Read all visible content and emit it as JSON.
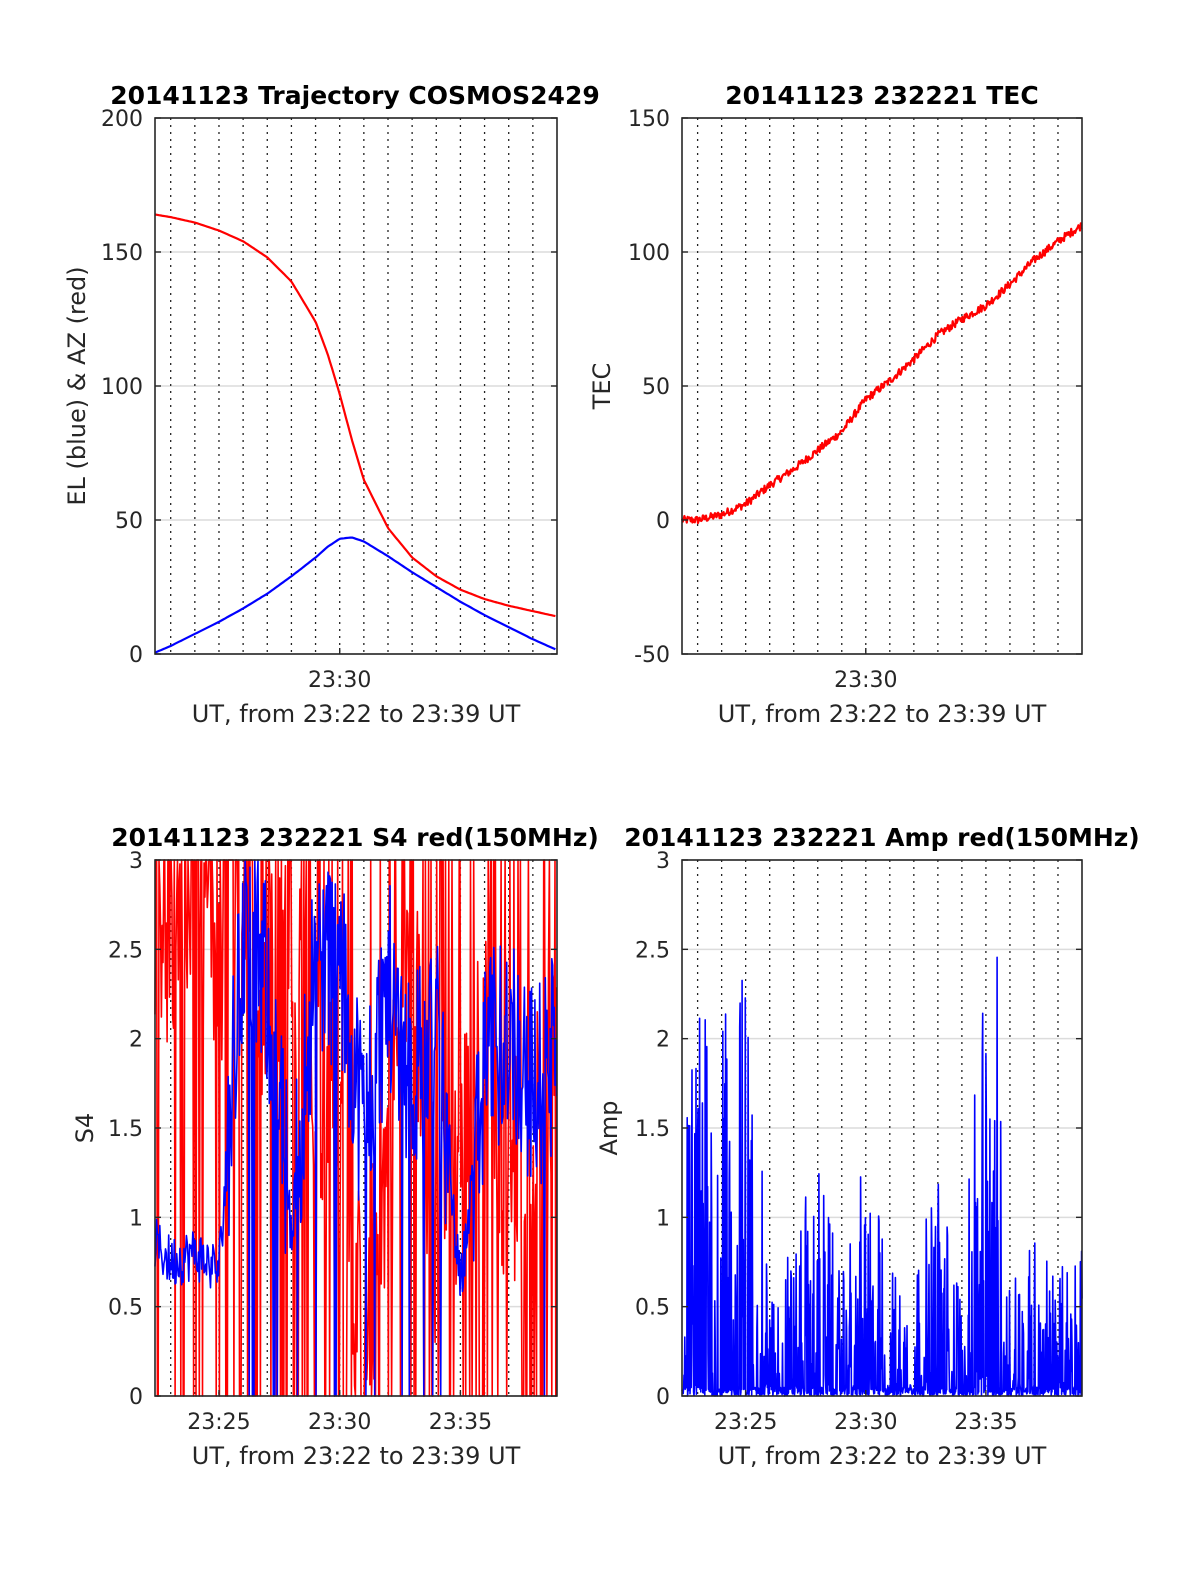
{
  "figure": {
    "colors": {
      "el": "#0000ff",
      "az": "#ff0000",
      "tec": "#ff0000",
      "s4_red": "#ff0000",
      "s4_blue": "#0000ff",
      "amp": "#0000ff"
    }
  },
  "chart_data": [
    {
      "type": "line",
      "title": "20141123 Trajectory COSMOS2429",
      "xlabel": "UT, from 23:22 to 23:39 UT",
      "ylabel": "EL (blue) & AZ (red)",
      "xlim": [
        "23:22:21",
        "23:39:00"
      ],
      "ylim": [
        0,
        200
      ],
      "yticks": [
        "0",
        "50",
        "100",
        "150",
        "200"
      ],
      "xticks": [
        {
          "t": "23:30:00",
          "label": "23:30"
        }
      ],
      "grid": true,
      "series": [
        {
          "color": "#0000ff",
          "t": [
            "23:22:21",
            "23:23:00",
            "23:24:00",
            "23:25:00",
            "23:26:00",
            "23:27:00",
            "23:28:00",
            "23:29:00",
            "23:29:30",
            "23:30:00",
            "23:30:30",
            "23:31:00",
            "23:32:00",
            "23:33:00",
            "23:34:00",
            "23:35:00",
            "23:36:00",
            "23:37:00",
            "23:38:00",
            "23:39:00"
          ],
          "values": [
            0.5,
            3,
            7.5,
            12,
            17,
            22.5,
            29,
            36,
            40,
            43,
            43.5,
            42,
            36.5,
            30.5,
            25,
            19.5,
            14.5,
            10,
            5.5,
            1.5
          ]
        },
        {
          "color": "#ff0000",
          "t": [
            "23:22:21",
            "23:23:00",
            "23:24:00",
            "23:25:00",
            "23:26:00",
            "23:27:00",
            "23:28:00",
            "23:29:00",
            "23:29:30",
            "23:30:00",
            "23:30:30",
            "23:31:00",
            "23:32:00",
            "23:33:00",
            "23:34:00",
            "23:35:00",
            "23:36:00",
            "23:37:00",
            "23:38:00",
            "23:39:00"
          ],
          "values": [
            164,
            163,
            161,
            158,
            154,
            148,
            139,
            124,
            112,
            97,
            80,
            65,
            47,
            36,
            29,
            24,
            20.5,
            18,
            16,
            14
          ]
        }
      ]
    },
    {
      "type": "line",
      "title": "20141123 232221 TEC",
      "xlabel": "UT, from 23:22 to 23:39 UT",
      "ylabel": "TEC",
      "xlim": [
        "23:22:21",
        "23:39:00"
      ],
      "ylim": [
        -50,
        150
      ],
      "yticks": [
        "-50",
        "0",
        "50",
        "100",
        "150"
      ],
      "xticks": [
        {
          "t": "23:30:00",
          "label": "23:30"
        }
      ],
      "grid": true,
      "series": [
        {
          "color": "#ff0000",
          "t": [
            "23:22:21",
            "23:23:00",
            "23:24:00",
            "23:25:00",
            "23:26:00",
            "23:27:00",
            "23:28:00",
            "23:29:00",
            "23:30:00",
            "23:31:00",
            "23:32:00",
            "23:33:00",
            "23:34:00",
            "23:35:00",
            "23:36:00",
            "23:37:00",
            "23:38:00",
            "23:39:00"
          ],
          "values": [
            0,
            0,
            2,
            6,
            13,
            19,
            26,
            33,
            45,
            52,
            60,
            69,
            75,
            80,
            88,
            97,
            104,
            110
          ]
        }
      ]
    },
    {
      "type": "line",
      "title": "20141123 232221 S4 red(150MHz)",
      "xlabel": "UT, from 23:22 to 23:39 UT",
      "ylabel": "S4",
      "xlim": [
        "23:22:21",
        "23:39:00"
      ],
      "ylim": [
        0,
        3
      ],
      "yticks": [
        "0",
        "0.5",
        "1",
        "1.5",
        "2",
        "2.5",
        "3"
      ],
      "xticks": [
        {
          "t": "23:25:00",
          "label": "23:25"
        },
        {
          "t": "23:30:00",
          "label": "23:30"
        },
        {
          "t": "23:35:00",
          "label": "23:35"
        }
      ],
      "grid": true,
      "series": [
        {
          "color": "#ff0000",
          "t": [
            "23:22:21",
            "23:23:00",
            "23:24:00",
            "23:25:00",
            "23:26:00",
            "23:27:00",
            "23:28:00",
            "23:29:00",
            "23:30:00",
            "23:31:00",
            "23:32:00",
            "23:33:00",
            "23:34:00",
            "23:35:00",
            "23:36:00",
            "23:37:00",
            "23:38:00",
            "23:39:00"
          ],
          "values": [
            2.8,
            2.6,
            2.7,
            2.4,
            2.9,
            2.2,
            2.8,
            1.5,
            1.6,
            0.2,
            1.4,
            2.5,
            0.8,
            1.3,
            2.0,
            1.2,
            1.6,
            1.8
          ]
        },
        {
          "color": "#0000ff",
          "t": [
            "23:22:21",
            "23:23:00",
            "23:24:00",
            "23:25:00",
            "23:26:00",
            "23:27:00",
            "23:28:00",
            "23:29:00",
            "23:30:00",
            "23:31:00",
            "23:32:00",
            "23:33:00",
            "23:34:00",
            "23:35:00",
            "23:36:00",
            "23:37:00",
            "23:38:00",
            "23:39:00"
          ],
          "values": [
            0.85,
            0.75,
            0.8,
            0.7,
            2.6,
            2.3,
            0.9,
            2.5,
            2.4,
            1.5,
            2.3,
            1.8,
            2.0,
            0.6,
            1.8,
            2.1,
            1.7,
            1.9
          ]
        }
      ]
    },
    {
      "type": "line",
      "title": "20141123 232221 Amp red(150MHz)",
      "xlabel": "UT, from 23:22 to 23:39 UT",
      "ylabel": "Amp",
      "xlim": [
        "23:22:21",
        "23:39:00"
      ],
      "ylim": [
        0,
        3
      ],
      "yticks": [
        "0",
        "0.5",
        "1",
        "1.5",
        "2",
        "2.5",
        "3"
      ],
      "xticks": [
        {
          "t": "23:25:00",
          "label": "23:25"
        },
        {
          "t": "23:30:00",
          "label": "23:30"
        },
        {
          "t": "23:35:00",
          "label": "23:35"
        }
      ],
      "grid": true,
      "series": [
        {
          "color": "#0000ff",
          "t": [
            "23:22:21",
            "23:23:00",
            "23:24:00",
            "23:25:00",
            "23:25:30",
            "23:26:00",
            "23:27:00",
            "23:28:00",
            "23:29:00",
            "23:30:00",
            "23:31:00",
            "23:32:00",
            "23:33:00",
            "23:34:00",
            "23:35:00",
            "23:35:30",
            "23:36:00",
            "23:37:00",
            "23:38:00",
            "23:39:00"
          ],
          "peak": [
            1.6,
            2.25,
            2.1,
            2.5,
            1.65,
            0.6,
            0.9,
            1.35,
            0.65,
            1.4,
            0.75,
            0.7,
            1.3,
            0.6,
            2.65,
            2.5,
            0.8,
            0.95,
            0.7,
            0.9
          ]
        }
      ]
    }
  ]
}
